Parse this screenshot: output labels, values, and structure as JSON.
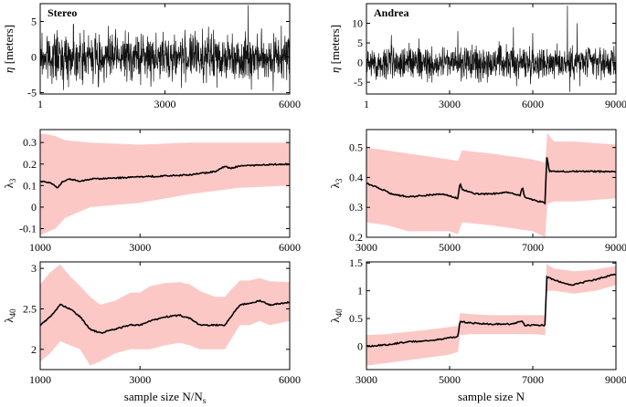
{
  "chart_data": [
    {
      "id": "stereo_eta",
      "type": "line",
      "title": "Stereo",
      "xlabel": "",
      "ylabel": "η [meters]",
      "xlim": [
        1,
        6000
      ],
      "ylim": [
        -5.2,
        7.5
      ],
      "xticks": [
        1,
        3000,
        6000
      ],
      "yticks": [
        -5,
        0,
        5
      ],
      "series": [
        {
          "name": "surface elevation",
          "kind": "noise",
          "amplitude": 2.6,
          "spikes": [
            [
              800,
              4.6
            ],
            [
              1400,
              -4.2
            ],
            [
              3900,
              4.0
            ],
            [
              4250,
              -4.3
            ],
            [
              5000,
              7.3
            ],
            [
              5080,
              -4.6
            ],
            [
              5600,
              -4.8
            ],
            [
              5800,
              4.4
            ]
          ]
        }
      ]
    },
    {
      "id": "andrea_eta",
      "type": "line",
      "title": "Andrea",
      "xlabel": "",
      "ylabel": "η [meters]",
      "xlim": [
        1,
        9000
      ],
      "ylim": [
        -8,
        15
      ],
      "xticks": [
        1,
        3000,
        6000,
        9000
      ],
      "yticks": [
        -5,
        0,
        5,
        10
      ],
      "series": [
        {
          "name": "surface elevation",
          "kind": "noise",
          "amplitude": 3.4,
          "spikes": [
            [
              900,
              7.0
            ],
            [
              2200,
              -5.0
            ],
            [
              3300,
              8.0
            ],
            [
              5300,
              9.0
            ],
            [
              5420,
              -6.0
            ],
            [
              6000,
              7.5
            ],
            [
              7250,
              14.5
            ],
            [
              7330,
              -7.5
            ],
            [
              7600,
              10.0
            ],
            [
              7700,
              -6.0
            ]
          ]
        }
      ]
    },
    {
      "id": "stereo_lambda3",
      "type": "area",
      "title": "",
      "xlabel": "",
      "ylabel": "λ3",
      "xlim": [
        1000,
        6000
      ],
      "ylim": [
        -0.14,
        0.36
      ],
      "xticks": [
        1000,
        3000,
        6000
      ],
      "yticks": [
        -0.1,
        0,
        0.1,
        0.2,
        0.3
      ],
      "series": [
        {
          "name": "mean",
          "x": [
            1000,
            1200,
            1350,
            1450,
            1600,
            1800,
            2000,
            2500,
            3000,
            3500,
            4000,
            4500,
            4700,
            4800,
            5000,
            5500,
            6000
          ],
          "y": [
            0.12,
            0.115,
            0.09,
            0.12,
            0.13,
            0.12,
            0.13,
            0.135,
            0.14,
            0.145,
            0.15,
            0.165,
            0.19,
            0.18,
            0.19,
            0.197,
            0.2
          ]
        },
        {
          "name": "upper",
          "x": [
            1000,
            1100,
            1300,
            1500,
            2000,
            3000,
            4000,
            5000,
            6000
          ],
          "y": [
            0.34,
            0.34,
            0.33,
            0.31,
            0.3,
            0.29,
            0.3,
            0.3,
            0.3
          ]
        },
        {
          "name": "lower",
          "x": [
            1000,
            1100,
            1300,
            1500,
            2000,
            3000,
            4000,
            5000,
            6000
          ],
          "y": [
            -0.13,
            -0.12,
            -0.1,
            -0.05,
            0.0,
            0.02,
            0.06,
            0.09,
            0.1
          ]
        }
      ]
    },
    {
      "id": "andrea_lambda3",
      "type": "area",
      "title": "",
      "xlabel": "",
      "ylabel": "λ3",
      "xlim": [
        3000,
        9000
      ],
      "ylim": [
        0.2,
        0.56
      ],
      "xticks": [
        3000,
        5000,
        7000,
        9000
      ],
      "yticks": [
        0.2,
        0.3,
        0.4,
        0.5
      ],
      "series": [
        {
          "name": "mean",
          "x": [
            3000,
            3300,
            3600,
            4000,
            4400,
            4800,
            5200,
            5250,
            5300,
            5600,
            6000,
            6400,
            6700,
            6750,
            6800,
            7000,
            7300,
            7330,
            7400,
            8000,
            8500,
            9000
          ],
          "y": [
            0.38,
            0.365,
            0.345,
            0.335,
            0.34,
            0.345,
            0.33,
            0.385,
            0.36,
            0.345,
            0.345,
            0.35,
            0.34,
            0.37,
            0.335,
            0.325,
            0.315,
            0.475,
            0.42,
            0.42,
            0.42,
            0.42
          ]
        },
        {
          "name": "upper",
          "x": [
            3000,
            3500,
            4000,
            4500,
            5000,
            5200,
            5300,
            6000,
            7000,
            7300,
            7350,
            7500,
            8000,
            9000
          ],
          "y": [
            0.5,
            0.49,
            0.48,
            0.47,
            0.46,
            0.455,
            0.49,
            0.48,
            0.46,
            0.45,
            0.55,
            0.52,
            0.52,
            0.51
          ]
        },
        {
          "name": "lower",
          "x": [
            3000,
            3500,
            4000,
            4500,
            5000,
            5200,
            5300,
            6000,
            7000,
            7300,
            7350,
            7500,
            8000,
            9000
          ],
          "y": [
            0.25,
            0.24,
            0.22,
            0.22,
            0.22,
            0.21,
            0.25,
            0.24,
            0.22,
            0.2,
            0.31,
            0.32,
            0.32,
            0.33
          ]
        }
      ]
    },
    {
      "id": "stereo_lambda40",
      "type": "area",
      "title": "",
      "xlabel": "sample size N/Ns",
      "ylabel": "λ40",
      "xlim": [
        1000,
        6000
      ],
      "ylim": [
        1.75,
        3.08
      ],
      "xticks": [
        1000,
        3000,
        6000
      ],
      "yticks": [
        2,
        2.5,
        3
      ],
      "series": [
        {
          "name": "mean",
          "x": [
            1000,
            1200,
            1400,
            1600,
            1800,
            2000,
            2200,
            2500,
            2800,
            3000,
            3200,
            3500,
            3800,
            4000,
            4200,
            4500,
            4700,
            5000,
            5200,
            5400,
            5600,
            6000
          ],
          "y": [
            2.3,
            2.4,
            2.55,
            2.5,
            2.4,
            2.25,
            2.2,
            2.25,
            2.3,
            2.3,
            2.35,
            2.4,
            2.42,
            2.38,
            2.3,
            2.3,
            2.3,
            2.55,
            2.57,
            2.6,
            2.55,
            2.58
          ]
        },
        {
          "name": "upper",
          "x": [
            1000,
            1200,
            1400,
            1600,
            1800,
            2000,
            2200,
            2500,
            2800,
            3000,
            3200,
            3500,
            3800,
            4000,
            4200,
            4500,
            4700,
            5000,
            5200,
            5400,
            5600,
            6000
          ],
          "y": [
            2.8,
            2.95,
            3.05,
            2.9,
            2.78,
            2.65,
            2.55,
            2.6,
            2.7,
            2.7,
            2.78,
            2.82,
            2.83,
            2.8,
            2.72,
            2.65,
            2.65,
            2.85,
            2.85,
            2.88,
            2.84,
            2.83
          ]
        },
        {
          "name": "lower",
          "x": [
            1000,
            1200,
            1400,
            1600,
            1800,
            2000,
            2200,
            2500,
            2800,
            3000,
            3200,
            3500,
            3800,
            4000,
            4200,
            4500,
            4700,
            5000,
            5200,
            5400,
            5600,
            6000
          ],
          "y": [
            1.85,
            1.95,
            2.1,
            2.05,
            2.0,
            1.8,
            1.85,
            1.95,
            2.0,
            2.0,
            2.0,
            2.05,
            2.08,
            2.05,
            2.0,
            2.0,
            2.0,
            2.3,
            2.3,
            2.35,
            2.3,
            2.35
          ]
        }
      ]
    },
    {
      "id": "andrea_lambda40",
      "type": "area",
      "title": "",
      "xlabel": "sample size N",
      "ylabel": "λ40",
      "xlim": [
        3000,
        9000
      ],
      "ylim": [
        -0.42,
        1.52
      ],
      "xticks": [
        3000,
        5000,
        7000,
        9000
      ],
      "yticks": [
        0,
        0.5,
        1,
        1.5
      ],
      "series": [
        {
          "name": "mean",
          "x": [
            3000,
            3500,
            4000,
            4500,
            5000,
            5200,
            5250,
            5500,
            6000,
            6500,
            6750,
            6800,
            7300,
            7330,
            7500,
            7700,
            7900,
            8200,
            8500,
            9000
          ],
          "y": [
            0.0,
            0.03,
            0.08,
            0.1,
            0.15,
            0.18,
            0.45,
            0.42,
            0.4,
            0.4,
            0.45,
            0.38,
            0.38,
            1.25,
            1.2,
            1.15,
            1.1,
            1.15,
            1.2,
            1.3
          ]
        },
        {
          "name": "upper",
          "x": [
            3000,
            3500,
            4000,
            4500,
            5000,
            5200,
            5250,
            5500,
            6000,
            6500,
            7000,
            7300,
            7330,
            7500,
            8000,
            8500,
            9000
          ],
          "y": [
            0.2,
            0.22,
            0.26,
            0.3,
            0.35,
            0.37,
            0.6,
            0.58,
            0.56,
            0.56,
            0.56,
            0.56,
            1.48,
            1.4,
            1.35,
            1.38,
            1.45
          ]
        },
        {
          "name": "lower",
          "x": [
            3000,
            3500,
            4000,
            4500,
            5000,
            5200,
            5250,
            5500,
            6000,
            6500,
            7000,
            7300,
            7330,
            7500,
            8000,
            8500,
            9000
          ],
          "y": [
            -0.35,
            -0.3,
            -0.25,
            -0.2,
            -0.15,
            -0.1,
            0.2,
            0.22,
            0.22,
            0.22,
            0.22,
            0.2,
            1.0,
            1.0,
            0.95,
            1.0,
            1.1
          ]
        }
      ]
    }
  ]
}
